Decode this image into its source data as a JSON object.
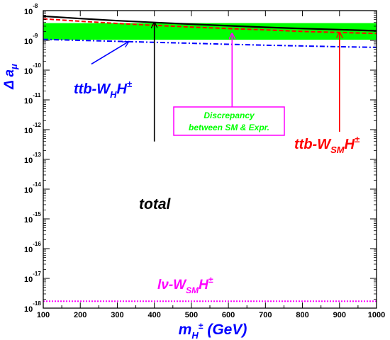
{
  "chart_data": {
    "type": "line",
    "xlabel": "m",
    "xlabel_sub": "H",
    "xlabel_sup": "±",
    "xlabel_unit": "(GeV)",
    "ylabel": "Δ a",
    "ylabel_sub": "μ",
    "xlim": [
      100,
      1000
    ],
    "ylim_exponent": [
      -18,
      -8
    ],
    "y_scale": "log",
    "grid": false,
    "x_ticks": [
      "100",
      "200",
      "300",
      "400",
      "500",
      "600",
      "700",
      "800",
      "900",
      "1000"
    ],
    "y_ticks": [
      {
        "exp": -8,
        "base": "10",
        "sup": "-8"
      },
      {
        "exp": -9,
        "base": "10",
        "sup": "-9"
      },
      {
        "exp": -10,
        "base": "10",
        "sup": "-10"
      },
      {
        "exp": -11,
        "base": "10",
        "sup": "-11"
      },
      {
        "exp": -12,
        "base": "10",
        "sup": "-12"
      },
      {
        "exp": -13,
        "base": "10",
        "sup": "-13"
      },
      {
        "exp": -14,
        "base": "10",
        "sup": "-14"
      },
      {
        "exp": -15,
        "base": "10",
        "sup": "-15"
      },
      {
        "exp": -16,
        "base": "10",
        "sup": "-16"
      },
      {
        "exp": -17,
        "base": "10",
        "sup": "-17"
      },
      {
        "exp": -18,
        "base": "10",
        "sup": "-18"
      }
    ],
    "band": {
      "x": [
        100,
        1000
      ],
      "low": [
        1.05e-09,
        1.05e-09
      ],
      "high": [
        3.8e-09,
        3.8e-09
      ],
      "color": "#00ff00"
    },
    "series": [
      {
        "key": "total",
        "color": "#000000",
        "dash": "solid",
        "x": [
          100,
          200,
          300,
          400,
          500,
          600,
          700,
          800,
          900,
          1000
        ],
        "y": [
          6.5e-09,
          5.4e-09,
          4.6e-09,
          4e-09,
          3.5e-09,
          3.1e-09,
          2.75e-09,
          2.5e-09,
          2.3e-09,
          2.1e-09
        ]
      },
      {
        "key": "ttb-WSM",
        "color": "#ff0000",
        "dash": "dashed",
        "x": [
          100,
          200,
          300,
          400,
          500,
          600,
          700,
          800,
          900,
          1000
        ],
        "y": [
          5.3e-09,
          4.4e-09,
          3.7e-09,
          3.2e-09,
          2.8e-09,
          2.5e-09,
          2.25e-09,
          2e-09,
          1.85e-09,
          1.7e-09
        ]
      },
      {
        "key": "ttb-WH",
        "color": "#0000ff",
        "dash": "dashdot",
        "x": [
          100,
          200,
          300,
          400,
          500,
          600,
          700,
          800,
          900,
          1000
        ],
        "y": [
          1.08e-09,
          1e-09,
          9.3e-10,
          8.6e-10,
          8e-10,
          7.4e-10,
          6.9e-10,
          6.5e-10,
          6.1e-10,
          5.8e-10
        ]
      },
      {
        "key": "lnu-WSM",
        "color": "#ff00ff",
        "dash": "dotted",
        "x": [
          100,
          1000
        ],
        "y": [
          1.7e-18,
          1.7e-18
        ]
      }
    ],
    "annotations": {
      "ttbWH": {
        "base": "ttb-W",
        "sub": "H",
        "tail": "H",
        "sup": "±",
        "color": "#0000ff"
      },
      "ttbWSM": {
        "base": "ttb-W",
        "sub": "SM",
        "tail": "H",
        "sup": "±",
        "color": "#ff0000"
      },
      "total": {
        "text": "total",
        "color": "#000000"
      },
      "lnu": {
        "base": "lν-W",
        "sub": "SM",
        "tail": "H",
        "sup": "±",
        "color": "#ff00ff"
      },
      "discrepancy": {
        "line1": "Discrepancy",
        "line2": "between SM & Expr.",
        "text_color": "#00ff00",
        "border_color": "#ff00ff"
      }
    },
    "arrows": [
      {
        "key": "total-arrow",
        "color": "#000000",
        "x": 400,
        "y_from": 4e-13,
        "y_to": 4e-09
      },
      {
        "key": "wsm-arrow",
        "color": "#ff0000",
        "x": 900,
        "y_from": 8.5e-13,
        "y_to": 1.85e-09
      },
      {
        "key": "discrepancy-arrow",
        "color": "#ff00ff",
        "x": 610,
        "y_from": 5e-12,
        "y_to": 1.7e-09
      },
      {
        "key": "wh-arrow",
        "color": "#0000ff",
        "x_from": 230,
        "y_from": 1.6e-10,
        "x_to": 330,
        "y_to": 9e-10
      }
    ]
  }
}
